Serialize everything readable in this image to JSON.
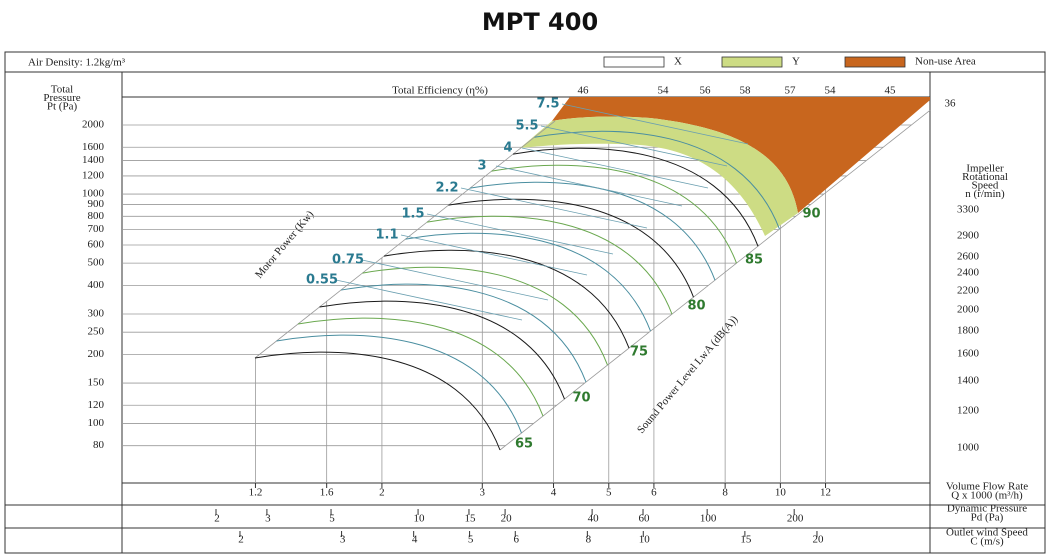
{
  "chart_data": {
    "type": "fan-performance",
    "title": "MPT 400",
    "air_density": "Air Density:  1.2kg/m³",
    "legend": [
      {
        "label": "X",
        "color": "#ffffff"
      },
      {
        "label": "Y",
        "color": "#cddc84"
      },
      {
        "label": "Non-use Area",
        "color": "#c8661e"
      }
    ],
    "pressure": {
      "label": [
        "Total",
        "Pressure",
        "Pt (Pa)"
      ],
      "log": true,
      "ylim": [
        55,
        2650
      ],
      "yticks": [
        80,
        100,
        120,
        150,
        200,
        250,
        300,
        400,
        500,
        600,
        700,
        800,
        900,
        1000,
        1200,
        1400,
        1600,
        2000
      ]
    },
    "flow": {
      "label": [
        "Volume Flow Rate",
        "Q x 1000 (m³/h)"
      ],
      "log": true,
      "xlim": [
        0.7,
        18.3
      ],
      "xticks": [
        1.2,
        1.6,
        2,
        3,
        4,
        5,
        6,
        8,
        10,
        12
      ]
    },
    "dynamic_pressure": {
      "label": [
        "Dynamic Pressure",
        "Pd (Pa)"
      ],
      "log": true,
      "xlim": [
        0.946,
        590
      ],
      "xticks": [
        2,
        3,
        5,
        10,
        15,
        20,
        40,
        60,
        100,
        200
      ]
    },
    "outlet_speed": {
      "label": [
        "Outlet wind Speed",
        "C (m/s)"
      ],
      "log": true,
      "xlim": [
        1.249,
        31.4
      ],
      "xticks": [
        2,
        3,
        4,
        5,
        6,
        8,
        10,
        15,
        20
      ]
    },
    "efficiency": {
      "label": "Total Efficiency (η%)",
      "values": [
        46,
        54,
        56,
        58,
        57,
        54,
        45
      ],
      "corner": 36
    },
    "speed": {
      "label": [
        "Impeller",
        "Rotational",
        "Speed",
        "n (r/min)"
      ],
      "values": [
        3300,
        2900,
        2600,
        2400,
        2200,
        2000,
        1800,
        1600,
        1400,
        1200,
        1000
      ]
    },
    "motor_power": {
      "label": "Motor Power (Kw)",
      "values": [
        7.5,
        5.5,
        4,
        3,
        2.2,
        1.5,
        1.1,
        0.75,
        0.55
      ]
    },
    "sound_power": {
      "label": "Sound Power Level LwA (dB(A))",
      "values": [
        65,
        70,
        75,
        80,
        85,
        90
      ]
    }
  }
}
